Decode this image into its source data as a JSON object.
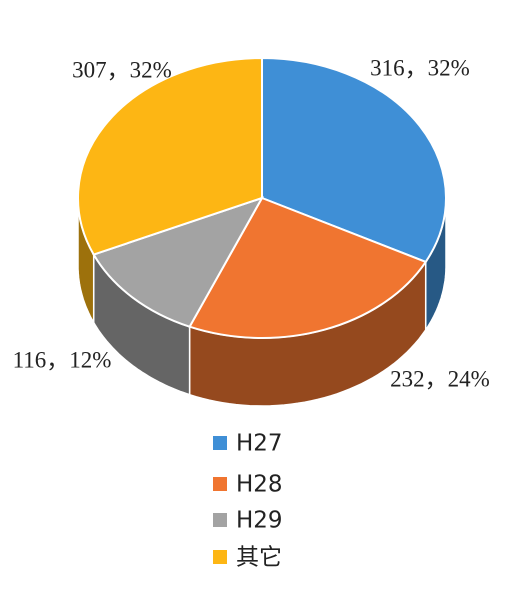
{
  "chart_data": {
    "type": "pie",
    "categories": [
      "H27",
      "H28",
      "H29",
      "其它"
    ],
    "values": [
      316,
      232,
      116,
      307
    ],
    "value_labels": [
      "316，32%",
      "232，24%",
      "116，12%",
      "307，32%"
    ],
    "colors": [
      "#3f8fd6",
      "#f07530",
      "#a3a3a3",
      "#fdb614"
    ],
    "legend": "bottom"
  }
}
